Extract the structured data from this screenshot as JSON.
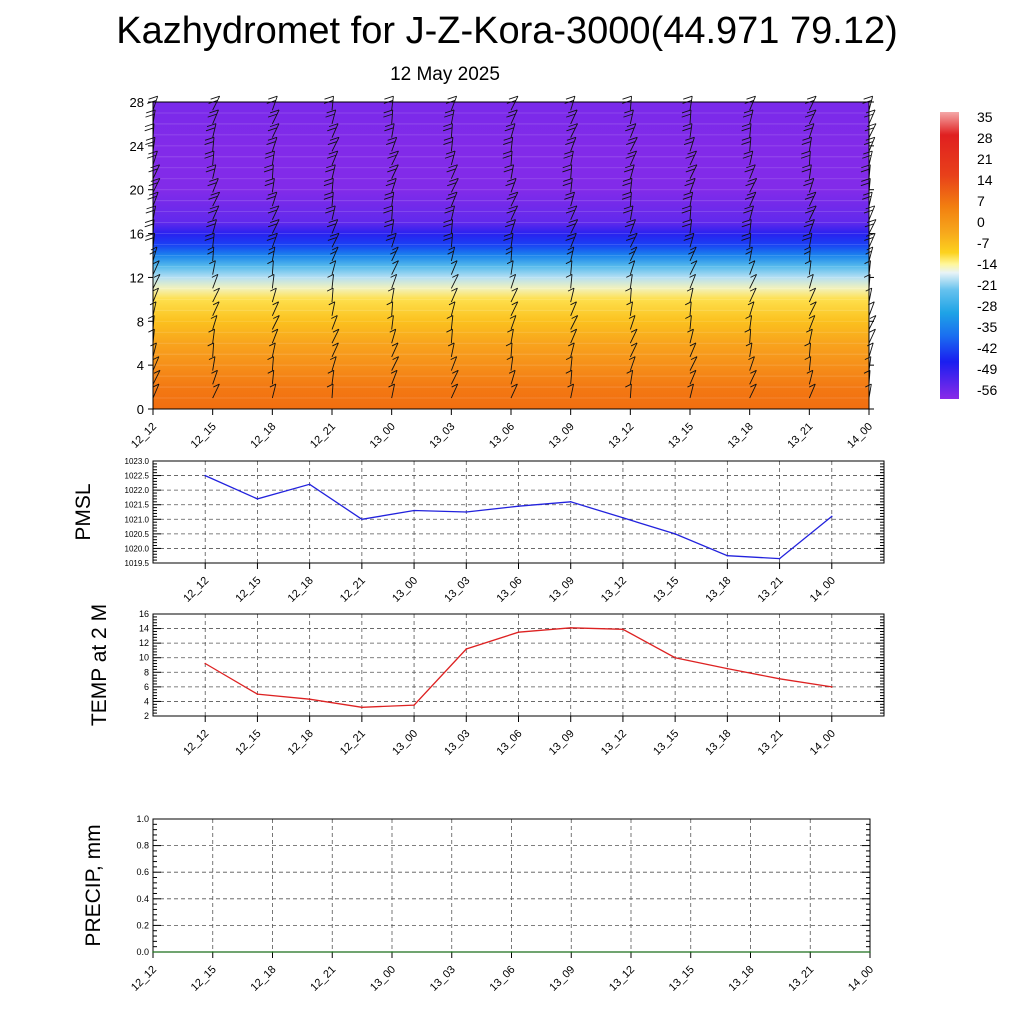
{
  "page": {
    "title": "Kazhydromet for J-Z-Kora-3000(44.971 79.12)",
    "subtitle": "12 May 2025"
  },
  "colors": {
    "pmsl_line": "#2222dd",
    "temp_line": "#dd2222",
    "precip_line": "#1a6e1a",
    "grid": "#555555"
  },
  "chart_data": [
    {
      "id": "temperature-wind-profile",
      "type": "heatmap",
      "title": "",
      "xlabel": "",
      "ylabel": "",
      "ylim": [
        0,
        28
      ],
      "yticks": [
        0,
        4,
        8,
        12,
        16,
        20,
        24,
        28
      ],
      "x": [
        "12_12",
        "12_15",
        "12_18",
        "12_21",
        "13_00",
        "13_03",
        "13_06",
        "13_09",
        "13_12",
        "13_15",
        "13_18",
        "13_21",
        "14_00"
      ],
      "colorbar": {
        "labels": [
          "35",
          "28",
          "21",
          "14",
          "7",
          "0",
          "-7",
          "-14",
          "-21",
          "-28",
          "-35",
          "-42",
          "-49",
          "-56"
        ],
        "min": -63,
        "max": 38
      },
      "temperature_profile": [
        {
          "level": 0,
          "value": 14
        },
        {
          "level": 2,
          "value": 12
        },
        {
          "level": 4,
          "value": 8
        },
        {
          "level": 6,
          "value": 5
        },
        {
          "level": 8,
          "value": 1
        },
        {
          "level": 10,
          "value": -4
        },
        {
          "level": 11,
          "value": -11
        },
        {
          "level": 12,
          "value": -17
        },
        {
          "level": 13,
          "value": -23
        },
        {
          "level": 14,
          "value": -33
        },
        {
          "level": 15,
          "value": -43
        },
        {
          "level": 16,
          "value": -51
        },
        {
          "level": 17,
          "value": -58
        },
        {
          "level": 20,
          "value": -62
        },
        {
          "level": 24,
          "value": -62
        },
        {
          "level": 28,
          "value": -61
        }
      ],
      "wind_barbs": "present"
    },
    {
      "id": "pmsl",
      "type": "line",
      "title": "",
      "xlabel": "",
      "ylabel": "PMSL",
      "ylim": [
        1019.5,
        1023.0
      ],
      "yticks": [
        1019.5,
        1020.0,
        1020.5,
        1021.0,
        1021.5,
        1022.0,
        1022.5,
        1023.0
      ],
      "ytick_labels": [
        "1019.5",
        "1020.0",
        "1020.5",
        "1021.0",
        "1021.5",
        "1022.0",
        "1022.5",
        "1023.0"
      ],
      "x": [
        "12_12",
        "12_15",
        "12_18",
        "12_21",
        "13_00",
        "13_03",
        "13_06",
        "13_09",
        "13_12",
        "13_15",
        "13_18",
        "13_21",
        "14_00"
      ],
      "series": [
        {
          "values": [
            1022.5,
            1021.7,
            1022.2,
            1021.0,
            1021.3,
            1021.25,
            1021.45,
            1021.6,
            1021.05,
            1020.5,
            1019.75,
            1019.65,
            1021.1
          ]
        }
      ]
    },
    {
      "id": "temp2m",
      "type": "line",
      "title": "",
      "xlabel": "",
      "ylabel": "TEMP at 2 M",
      "ylim": [
        2,
        16
      ],
      "yticks": [
        2,
        4,
        6,
        8,
        10,
        12,
        14,
        16
      ],
      "ytick_labels": [
        "2",
        "4",
        "6",
        "8",
        "10",
        "12",
        "14",
        "16"
      ],
      "x": [
        "12_12",
        "12_15",
        "12_18",
        "12_21",
        "13_00",
        "13_03",
        "13_06",
        "13_09",
        "13_12",
        "13_15",
        "13_18",
        "13_21",
        "14_00"
      ],
      "series": [
        {
          "values": [
            9.2,
            5.0,
            4.3,
            3.2,
            3.5,
            11.2,
            13.5,
            14.1,
            13.9,
            10.0,
            8.5,
            7.1,
            6.0
          ]
        }
      ]
    },
    {
      "id": "precip",
      "type": "line",
      "title": "",
      "xlabel": "",
      "ylabel": "PRECIP, mm",
      "ylim": [
        0,
        1
      ],
      "yticks": [
        0,
        0.2,
        0.4,
        0.6,
        0.8,
        1.0
      ],
      "ytick_labels": [
        "0.0",
        "0.2",
        "0.4",
        "0.6",
        "0.8",
        "1.0"
      ],
      "x": [
        "12_12",
        "12_15",
        "12_18",
        "12_21",
        "13_00",
        "13_03",
        "13_06",
        "13_09",
        "13_12",
        "13_15",
        "13_18",
        "13_21",
        "14_00"
      ],
      "series": [
        {
          "values": [
            0,
            0,
            0,
            0,
            0,
            0,
            0,
            0,
            0,
            0,
            0,
            0,
            0
          ]
        }
      ]
    }
  ]
}
